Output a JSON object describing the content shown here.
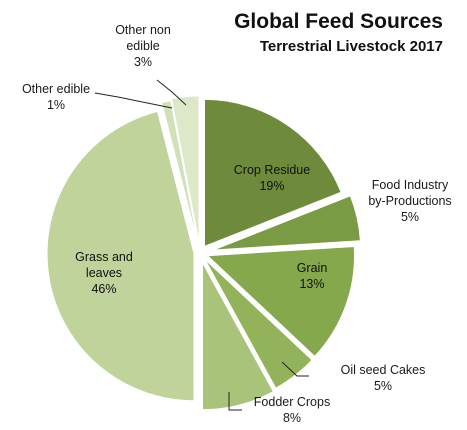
{
  "chart_data": {
    "type": "pie",
    "title": "Global Feed Sources",
    "subtitle": "Terrestrial Livestock 2017",
    "slices": [
      {
        "label_lines": [
          "Crop Residue"
        ],
        "value_text": "19%",
        "value": 19,
        "color": "#6e8a3b"
      },
      {
        "label_lines": [
          "Food Industry",
          "by-Productions"
        ],
        "value_text": "5%",
        "value": 5,
        "color": "#7a9a44"
      },
      {
        "label_lines": [
          "Grain"
        ],
        "value_text": "13%",
        "value": 13,
        "color": "#86a84d"
      },
      {
        "label_lines": [
          "Oil seed Cakes"
        ],
        "value_text": "5%",
        "value": 5,
        "color": "#93b35a"
      },
      {
        "label_lines": [
          "Fodder Crops"
        ],
        "value_text": "8%",
        "value": 8,
        "color": "#a9c47a"
      },
      {
        "label_lines": [
          "Grass and",
          "leaves"
        ],
        "value_text": "46%",
        "value": 46,
        "color": "#bfd39a"
      },
      {
        "label_lines": [
          "Other edible"
        ],
        "value_text": "1%",
        "value": 1,
        "color": "#d2e0b8"
      },
      {
        "label_lines": [
          "Other non",
          "edible"
        ],
        "value_text": "3%",
        "value": 3,
        "color": "#dde8c9"
      }
    ]
  }
}
